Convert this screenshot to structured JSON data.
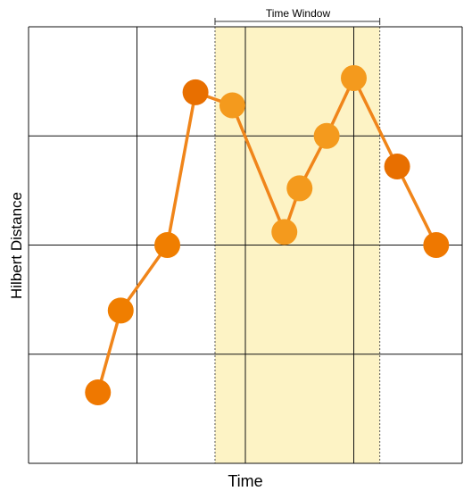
{
  "chart_data": {
    "type": "line",
    "xlabel": "Time",
    "ylabel": "Hilbert Distance",
    "annotation": "Time Window",
    "xlim": [
      0,
      4
    ],
    "ylim": [
      0,
      4
    ],
    "grid": true,
    "window": {
      "x_start": 1.72,
      "x_end": 3.24
    },
    "line_color": "#f0851a",
    "window_fill": "#fdf3c5",
    "points": [
      {
        "x": 0.64,
        "y": 0.65,
        "color": "#ef7800"
      },
      {
        "x": 0.85,
        "y": 1.4,
        "color": "#f07e00"
      },
      {
        "x": 1.28,
        "y": 2.0,
        "color": "#f07e00"
      },
      {
        "x": 1.54,
        "y": 3.4,
        "color": "#e86f00"
      },
      {
        "x": 1.88,
        "y": 3.28,
        "color": "#f49a1d"
      },
      {
        "x": 2.36,
        "y": 2.12,
        "color": "#f49a1d"
      },
      {
        "x": 2.5,
        "y": 2.52,
        "color": "#f49a1d"
      },
      {
        "x": 2.75,
        "y": 3.0,
        "color": "#f49a1d"
      },
      {
        "x": 3.0,
        "y": 3.53,
        "color": "#f49a1d"
      },
      {
        "x": 3.4,
        "y": 2.72,
        "color": "#e86f00"
      },
      {
        "x": 3.76,
        "y": 2.0,
        "color": "#ef7800"
      }
    ]
  }
}
